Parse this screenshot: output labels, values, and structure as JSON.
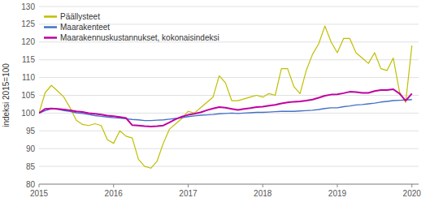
{
  "chart_data": {
    "type": "line",
    "ylabel": "indeksi 2015=100",
    "xlim": [
      2015.0,
      2020.09
    ],
    "ylim": [
      80,
      130
    ],
    "xticks": [
      2015,
      2016,
      2017,
      2018,
      2019,
      2020
    ],
    "yticks": [
      80,
      85,
      90,
      95,
      100,
      105,
      110,
      115,
      120,
      125,
      130
    ],
    "grid": true,
    "legend": "upper left",
    "x": [
      2015.0,
      2015.0833333333333,
      2015.1666666666667,
      2015.25,
      2015.3333333333333,
      2015.4166666666667,
      2015.5,
      2015.5833333333333,
      2015.6666666666667,
      2015.75,
      2015.8333333333333,
      2015.9166666666667,
      2016.0,
      2016.0833333333333,
      2016.1666666666667,
      2016.25,
      2016.3333333333333,
      2016.4166666666667,
      2016.5,
      2016.5833333333333,
      2016.6666666666667,
      2016.75,
      2016.8333333333333,
      2016.9166666666667,
      2017.0,
      2017.0833333333333,
      2017.1666666666667,
      2017.25,
      2017.3333333333333,
      2017.4166666666667,
      2017.5,
      2017.5833333333333,
      2017.6666666666667,
      2017.75,
      2017.8333333333333,
      2017.9166666666667,
      2018.0,
      2018.0833333333333,
      2018.1666666666667,
      2018.25,
      2018.3333333333333,
      2018.4166666666667,
      2018.5,
      2018.5833333333333,
      2018.6666666666667,
      2018.75,
      2018.8333333333333,
      2018.9166666666667,
      2019.0,
      2019.0833333333333,
      2019.1666666666667,
      2019.25,
      2019.3333333333333,
      2019.4166666666667,
      2019.5,
      2019.5833333333333,
      2019.6666666666667,
      2019.75,
      2019.8333333333333,
      2019.9166666666667,
      2020.0
    ],
    "series": [
      {
        "name": "Päällysteet",
        "color": "#bfbf00",
        "values": [
          100.0,
          105.8,
          107.8,
          106.2,
          104.5,
          101.5,
          98.0,
          96.8,
          96.5,
          97.0,
          96.5,
          92.5,
          91.5,
          95.0,
          93.5,
          93.0,
          87.0,
          85.0,
          84.5,
          86.5,
          91.5,
          95.5,
          97.0,
          98.5,
          100.5,
          100.0,
          101.5,
          103.0,
          104.5,
          110.5,
          108.5,
          103.5,
          103.5,
          104.0,
          104.5,
          105.0,
          104.5,
          105.5,
          105.0,
          112.5,
          112.5,
          107.5,
          105.5,
          112.0,
          116.5,
          119.5,
          124.5,
          120.0,
          117.0,
          121.0,
          121.0,
          117.0,
          115.5,
          114.0,
          117.0,
          112.5,
          112.0,
          115.5,
          106.0,
          103.0,
          119.0
        ]
      },
      {
        "name": "Maarakenteet",
        "color": "#4472c4",
        "values": [
          100.0,
          100.7,
          101.2,
          101.1,
          100.7,
          100.5,
          100.1,
          99.9,
          99.6,
          99.3,
          99.1,
          98.9,
          98.7,
          98.6,
          98.4,
          98.2,
          98.1,
          97.9,
          97.9,
          98.0,
          98.1,
          98.3,
          98.5,
          98.7,
          99.0,
          99.2,
          99.4,
          99.5,
          99.6,
          99.8,
          99.9,
          100.0,
          99.9,
          100.0,
          100.1,
          100.2,
          100.2,
          100.3,
          100.4,
          100.5,
          100.5,
          100.5,
          100.6,
          100.7,
          100.8,
          101.0,
          101.3,
          101.5,
          101.5,
          101.8,
          102.0,
          102.3,
          102.4,
          102.6,
          102.8,
          103.1,
          103.3,
          103.5,
          103.6,
          103.7,
          103.8
        ]
      },
      {
        "name": "Maarakennuskustannukset, kokonaisindeksi",
        "color": "#c000a0",
        "values": [
          100.0,
          101.2,
          101.3,
          101.2,
          101.0,
          100.8,
          100.5,
          100.3,
          100.0,
          99.8,
          99.6,
          99.3,
          99.1,
          98.9,
          98.6,
          96.6,
          96.5,
          96.3,
          96.2,
          96.3,
          96.5,
          97.4,
          98.3,
          99.0,
          99.5,
          99.8,
          100.2,
          100.8,
          101.3,
          101.7,
          101.5,
          101.2,
          100.9,
          101.2,
          101.4,
          101.7,
          101.8,
          102.1,
          102.3,
          102.7,
          103.0,
          103.2,
          103.3,
          103.5,
          103.8,
          104.3,
          104.9,
          105.2,
          105.3,
          105.6,
          106.0,
          105.9,
          105.7,
          105.7,
          106.2,
          106.5,
          106.5,
          106.7,
          105.5,
          103.5,
          105.5
        ]
      }
    ]
  }
}
